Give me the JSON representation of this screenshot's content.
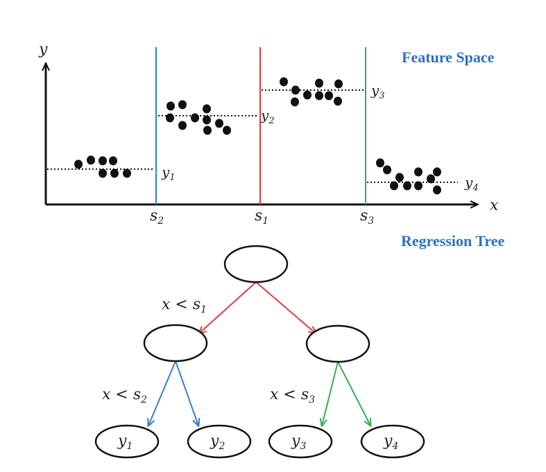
{
  "colors": {
    "blue": "#3a7cc4",
    "red": "#e23b3b",
    "green": "#3aaa55",
    "title": "#2f6fc0",
    "ink": "#111111"
  },
  "feature_space": {
    "title": "Feature Space",
    "axis_x": "x",
    "axis_y": "y",
    "split_labels": [
      {
        "base": "s",
        "sub": "2"
      },
      {
        "base": "s",
        "sub": "1"
      },
      {
        "base": "s",
        "sub": "3"
      }
    ],
    "level_labels": [
      {
        "base": "y",
        "sub": "1"
      },
      {
        "base": "y",
        "sub": "2"
      },
      {
        "base": "y",
        "sub": "3"
      },
      {
        "base": "y",
        "sub": "4"
      }
    ]
  },
  "regression_tree": {
    "title": "Regression Tree",
    "conditions": [
      {
        "text": "x < s",
        "sub": "1"
      },
      {
        "text": "x < s",
        "sub": "2"
      },
      {
        "text": "x < s",
        "sub": "3"
      }
    ],
    "leaves": [
      {
        "base": "y",
        "sub": "1"
      },
      {
        "base": "y",
        "sub": "2"
      },
      {
        "base": "y",
        "sub": "3"
      },
      {
        "base": "y",
        "sub": "4"
      }
    ]
  }
}
